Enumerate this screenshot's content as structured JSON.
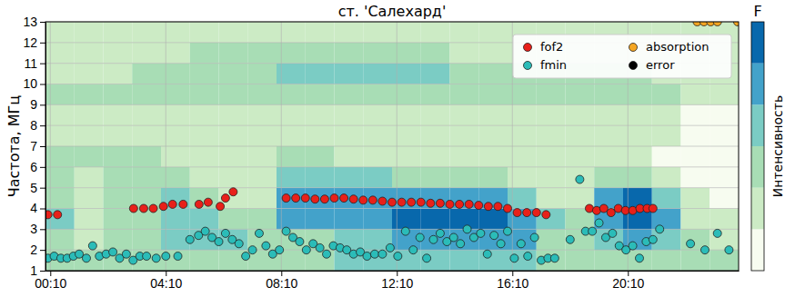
{
  "chart_data": {
    "type": "scatter",
    "title": "ст. 'Салехард'",
    "y_label": "Частота, МГц",
    "xlim": [
      0,
      1440
    ],
    "xticks": [
      {
        "value": 10,
        "label": "00:10"
      },
      {
        "value": 250,
        "label": "04:10"
      },
      {
        "value": 490,
        "label": "08:10"
      },
      {
        "value": 730,
        "label": "12:10"
      },
      {
        "value": 970,
        "label": "16:10"
      },
      {
        "value": 1210,
        "label": "20:10"
      }
    ],
    "ylim": [
      1,
      13
    ],
    "yticks": [
      1,
      2,
      3,
      4,
      5,
      6,
      7,
      8,
      9,
      10,
      11,
      12,
      13
    ],
    "grid": true,
    "legend": "upper right",
    "series": [
      {
        "name": "fof2",
        "color": "#e8201a",
        "marker": "circle",
        "x": [
          5,
          25,
          183,
          204,
          224,
          245,
          264,
          286,
          319,
          338,
          363,
          374,
          390,
          500,
          520,
          540,
          560,
          580,
          600,
          620,
          640,
          660,
          680,
          700,
          720,
          740,
          760,
          780,
          800,
          820,
          840,
          860,
          880,
          900,
          920,
          940,
          960,
          980,
          1000,
          1020,
          1040,
          1130,
          1145,
          1160,
          1175,
          1190,
          1205,
          1220,
          1235,
          1250,
          1262
        ],
        "values": [
          3.7,
          3.7,
          4.0,
          4.0,
          4.0,
          4.1,
          4.2,
          4.2,
          4.2,
          4.3,
          4.1,
          4.5,
          4.8,
          4.5,
          4.5,
          4.5,
          4.45,
          4.45,
          4.5,
          4.5,
          4.45,
          4.4,
          4.4,
          4.35,
          4.3,
          4.3,
          4.3,
          4.3,
          4.25,
          4.25,
          4.2,
          4.2,
          4.2,
          4.15,
          4.1,
          4.1,
          4.0,
          3.8,
          3.8,
          3.8,
          3.7,
          4.0,
          3.9,
          4.0,
          3.8,
          4.0,
          3.9,
          3.9,
          4.0,
          4.0,
          4.0
        ]
      },
      {
        "name": "fmin",
        "color": "#2bbcb8",
        "marker": "circle",
        "x": [
          5,
          18,
          32,
          45,
          58,
          70,
          85,
          98,
          112,
          126,
          140,
          154,
          168,
          182,
          196,
          210,
          230,
          250,
          275,
          300,
          318,
          332,
          346,
          360,
          374,
          388,
          402,
          416,
          430,
          444,
          458,
          472,
          486,
          500,
          514,
          528,
          542,
          556,
          570,
          584,
          598,
          612,
          626,
          640,
          654,
          668,
          684,
          700,
          716,
          732,
          748,
          764,
          778,
          792,
          806,
          820,
          834,
          848,
          862,
          876,
          890,
          904,
          918,
          932,
          946,
          960,
          974,
          988,
          1002,
          1016,
          1030,
          1044,
          1058,
          1090,
          1110,
          1122,
          1136,
          1150,
          1164,
          1178,
          1192,
          1206,
          1220,
          1234,
          1248,
          1262,
          1276,
          1340,
          1370,
          1396,
          1420
        ],
        "values": [
          1.6,
          1.7,
          1.6,
          1.6,
          1.7,
          1.8,
          1.6,
          2.2,
          1.7,
          1.8,
          1.9,
          1.6,
          1.8,
          1.5,
          1.7,
          1.7,
          1.6,
          1.7,
          1.7,
          2.5,
          2.7,
          2.9,
          2.6,
          2.4,
          2.8,
          2.5,
          2.3,
          1.7,
          2.0,
          2.8,
          2.2,
          1.8,
          2.0,
          2.9,
          2.6,
          2.4,
          2.0,
          2.3,
          2.1,
          1.8,
          2.2,
          2.1,
          2.0,
          1.8,
          1.9,
          1.7,
          1.8,
          1.8,
          2.1,
          1.7,
          2.9,
          2.0,
          2.6,
          1.6,
          2.5,
          2.8,
          2.4,
          2.6,
          2.3,
          3.0,
          2.6,
          2.8,
          1.8,
          2.7,
          2.3,
          2.9,
          1.6,
          2.3,
          1.7,
          2.6,
          1.5,
          1.6,
          1.6,
          2.5,
          5.4,
          2.9,
          2.9,
          3.3,
          2.6,
          2.8,
          2.2,
          2.0,
          2.2,
          1.6,
          2.4,
          2.5,
          3.0,
          2.3,
          2.0,
          2.8,
          2.0
        ]
      },
      {
        "name": "absorption",
        "color": "#f5a623",
        "marker": "circle",
        "x": [
          1354,
          1368,
          1382,
          1396,
          1438
        ],
        "values": [
          13,
          13,
          13,
          13,
          13
        ]
      },
      {
        "name": "error",
        "color": "#000000",
        "marker": "circle",
        "x": [],
        "values": []
      }
    ],
    "heatmap": {
      "label": "Интенсивность",
      "colorbar_title": "F",
      "clim": [
        0,
        6
      ],
      "x_bins": [
        0,
        60,
        120,
        180,
        240,
        300,
        360,
        420,
        480,
        540,
        600,
        660,
        720,
        780,
        840,
        900,
        960,
        1020,
        1080,
        1140,
        1200,
        1260,
        1320,
        1380,
        1440
      ],
      "y_bins": [
        1,
        2,
        3,
        4,
        5,
        6,
        7,
        8,
        9,
        10,
        11,
        12,
        13
      ],
      "cells": [
        [
          2,
          2,
          2,
          2,
          2,
          2,
          2,
          2,
          2,
          2,
          3,
          3,
          3,
          3,
          3,
          3,
          3,
          2,
          2,
          2,
          2,
          2,
          2,
          2
        ],
        [
          2,
          1,
          2,
          2,
          3,
          3,
          3,
          2,
          2,
          2,
          3,
          3,
          4,
          4,
          4,
          4,
          4,
          2,
          2,
          3,
          4,
          3,
          2,
          1
        ],
        [
          3,
          1,
          2,
          2,
          3,
          3,
          2,
          2,
          4,
          4,
          4,
          4,
          5,
          5,
          5,
          5,
          4,
          3,
          2,
          4,
          5,
          4,
          1,
          1
        ],
        [
          2,
          1,
          2,
          2,
          3,
          2,
          1,
          1,
          4,
          4,
          4,
          4,
          4,
          4,
          4,
          4,
          3,
          1,
          1,
          4,
          5,
          3,
          1,
          0
        ],
        [
          2,
          1,
          2,
          2,
          2,
          1,
          1,
          1,
          3,
          3,
          3,
          3,
          2,
          2,
          2,
          2,
          1,
          1,
          1,
          2,
          2,
          1,
          0,
          0
        ],
        [
          2,
          2,
          2,
          2,
          1,
          1,
          1,
          1,
          2,
          2,
          1,
          1,
          1,
          1,
          1,
          1,
          1,
          1,
          1,
          1,
          1,
          0,
          0,
          0
        ],
        [
          1,
          1,
          1,
          1,
          1,
          1,
          1,
          1,
          1,
          1,
          1,
          1,
          1,
          1,
          1,
          1,
          1,
          1,
          1,
          1,
          1,
          1,
          0,
          0
        ],
        [
          1,
          1,
          1,
          1,
          1,
          1,
          1,
          1,
          1,
          1,
          1,
          1,
          1,
          1,
          1,
          1,
          1,
          1,
          1,
          1,
          1,
          1,
          0,
          0
        ],
        [
          2,
          2,
          2,
          2,
          2,
          2,
          2,
          2,
          2,
          2,
          2,
          2,
          2,
          2,
          2,
          2,
          2,
          2,
          2,
          2,
          2,
          2,
          1,
          1
        ],
        [
          1,
          1,
          1,
          2,
          2,
          2,
          2,
          2,
          3,
          3,
          3,
          3,
          3,
          3,
          2,
          2,
          2,
          2,
          2,
          2,
          2,
          1,
          1,
          1
        ],
        [
          1,
          1,
          1,
          1,
          1,
          2,
          2,
          2,
          2,
          2,
          2,
          2,
          2,
          2,
          1,
          1,
          1,
          1,
          1,
          1,
          1,
          1,
          1,
          1
        ],
        [
          1,
          1,
          1,
          1,
          1,
          1,
          1,
          1,
          1,
          1,
          1,
          1,
          1,
          1,
          1,
          1,
          1,
          1,
          1,
          1,
          1,
          1,
          1,
          1
        ]
      ]
    }
  }
}
